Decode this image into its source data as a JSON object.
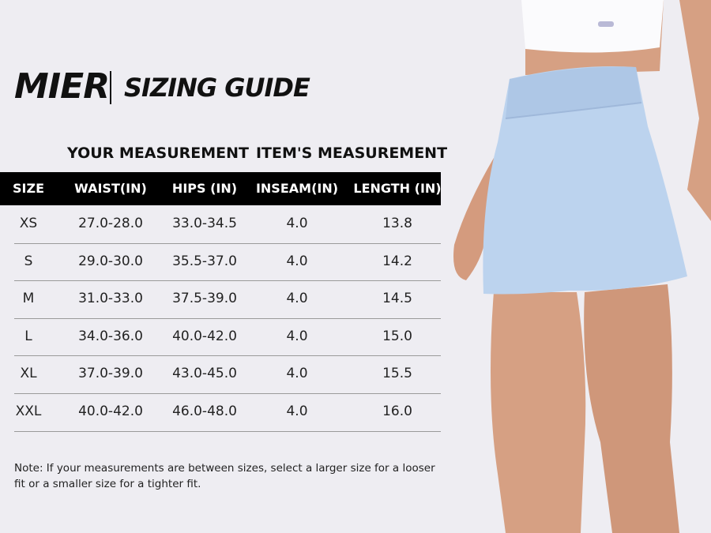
{
  "header": {
    "brand": "MIER",
    "title": "SIZING GUIDE"
  },
  "table": {
    "groups": [
      "YOUR MEASUREMENT",
      "ITEM'S MEASUREMENT"
    ],
    "columns": [
      "SIZE",
      "WAIST(IN)",
      "HIPS (IN)",
      "INSEAM(IN)",
      "LENGTH (IN)"
    ],
    "rows": [
      [
        "XS",
        "27.0-28.0",
        "33.0-34.5",
        "4.0",
        "13.8"
      ],
      [
        "S",
        "29.0-30.0",
        "35.5-37.0",
        "4.0",
        "14.2"
      ],
      [
        "M",
        "31.0-33.0",
        "37.5-39.0",
        "4.0",
        "14.5"
      ],
      [
        "L",
        "34.0-36.0",
        "40.0-42.0",
        "4.0",
        "15.0"
      ],
      [
        "XL",
        "37.0-39.0",
        "43.0-45.0",
        "4.0",
        "15.5"
      ],
      [
        "XXL",
        "40.0-42.0",
        "46.0-48.0",
        "4.0",
        "16.0"
      ]
    ]
  },
  "note": "Note: If your measurements are between sizes, select a larger size for a looser fit or a smaller size for a tighter fit."
}
